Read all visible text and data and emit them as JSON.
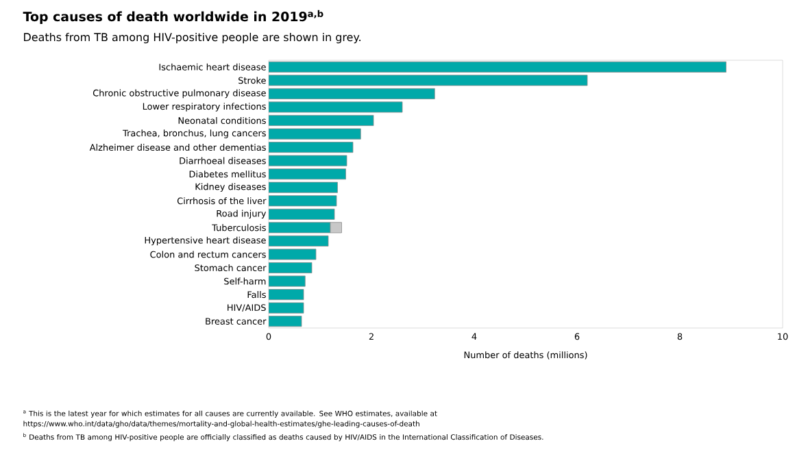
{
  "chart_data": {
    "type": "bar",
    "orientation": "horizontal",
    "stacked": true,
    "title": "Top causes of death worldwide in 2019$^{a,b}$",
    "subtitle": "Deaths from TB among HIV-positive people are shown in grey.",
    "xlabel": "Number of deaths (millions)",
    "categories": [
      "Ischaemic heart disease",
      "Stroke",
      "Chronic obstructive pulmonary disease",
      "Lower respiratory infections",
      "Neonatal conditions",
      "Trachea, bronchus, lung cancers",
      "Alzheimer disease and other dementias",
      "Diarrhoeal diseases",
      "Diabetes mellitus",
      "Kidney diseases",
      "Cirrhosis of the liver",
      "Road injury",
      "Tuberculosis",
      "Hypertensive heart disease",
      "Colon and rectum cancers",
      "Stomach cancer",
      "Self-harm",
      "Falls",
      "HIV/AIDS",
      "Breast cancer"
    ],
    "series": [
      {
        "color": "#00a9a9",
        "values": [
          8.9,
          6.2,
          3.23,
          2.6,
          2.04,
          1.79,
          1.64,
          1.52,
          1.5,
          1.34,
          1.32,
          1.28,
          1.2,
          1.16,
          0.92,
          0.84,
          0.71,
          0.68,
          0.68,
          0.64
        ]
      },
      {
        "color": "#c8c8c8",
        "values": [
          null,
          null,
          null,
          null,
          null,
          null,
          null,
          null,
          null,
          null,
          null,
          null,
          0.22,
          null,
          null,
          null,
          null,
          null,
          null,
          null
        ]
      }
    ],
    "xlim": [
      0,
      10
    ],
    "xticks": [
      0,
      2,
      4,
      6,
      8,
      10
    ],
    "annotations": [
      "$^{a}$ This is the latest year for which estimates for all causes are currently available. See WHO estimates, available at https://www.who.int/data/gho/data/themes/mortality-and-global-health-estimates/ghe-leading-causes-of-death",
      "$^{b}$ Deaths from TB among HIV-positive people are officially classified as deaths caused by HIV/AIDS in the International Classification of Diseases."
    ]
  }
}
